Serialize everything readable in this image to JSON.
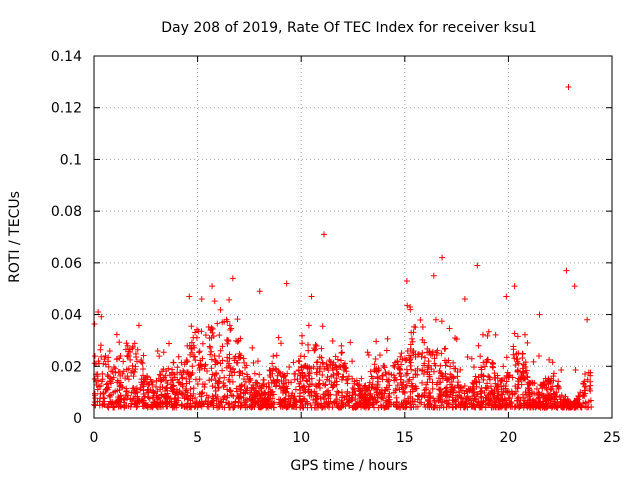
{
  "chart_data": {
    "type": "scatter",
    "title": "Day 208 of 2019, Rate Of TEC Index for receiver ksu1",
    "xlabel": "GPS time / hours",
    "ylabel": "ROTI / TECUs",
    "xlim": [
      0,
      25
    ],
    "ylim": [
      0,
      0.14
    ],
    "xticks": [
      0,
      5,
      10,
      15,
      20,
      25
    ],
    "xtick_labels": [
      "0",
      "5",
      "10",
      "15",
      "20",
      "25"
    ],
    "yticks": [
      0,
      0.02,
      0.04,
      0.06,
      0.08,
      0.1,
      0.12,
      0.14
    ],
    "ytick_labels": [
      "0",
      "0.02",
      "0.04",
      "0.06",
      "0.08",
      "0.1",
      "0.12",
      "0.14"
    ],
    "grid": true,
    "marker": "+",
    "series": [
      {
        "name": "ROTI",
        "color": "#ff0000",
        "x_range": [
          0,
          24
        ],
        "typical_y_range": [
          0.004,
          0.03
        ],
        "notable_points": [
          {
            "x": 0.2,
            "y": 0.041
          },
          {
            "x": 4.6,
            "y": 0.047
          },
          {
            "x": 5.2,
            "y": 0.046
          },
          {
            "x": 5.7,
            "y": 0.051
          },
          {
            "x": 6.7,
            "y": 0.054
          },
          {
            "x": 8.0,
            "y": 0.049
          },
          {
            "x": 9.3,
            "y": 0.052
          },
          {
            "x": 10.5,
            "y": 0.047
          },
          {
            "x": 11.1,
            "y": 0.071
          },
          {
            "x": 15.1,
            "y": 0.053
          },
          {
            "x": 16.4,
            "y": 0.055
          },
          {
            "x": 16.8,
            "y": 0.062
          },
          {
            "x": 17.9,
            "y": 0.046
          },
          {
            "x": 18.5,
            "y": 0.059
          },
          {
            "x": 19.9,
            "y": 0.047
          },
          {
            "x": 20.3,
            "y": 0.051
          },
          {
            "x": 21.5,
            "y": 0.04
          },
          {
            "x": 22.8,
            "y": 0.057
          },
          {
            "x": 22.9,
            "y": 0.128
          },
          {
            "x": 23.2,
            "y": 0.051
          },
          {
            "x": 23.8,
            "y": 0.038
          }
        ]
      }
    ]
  }
}
